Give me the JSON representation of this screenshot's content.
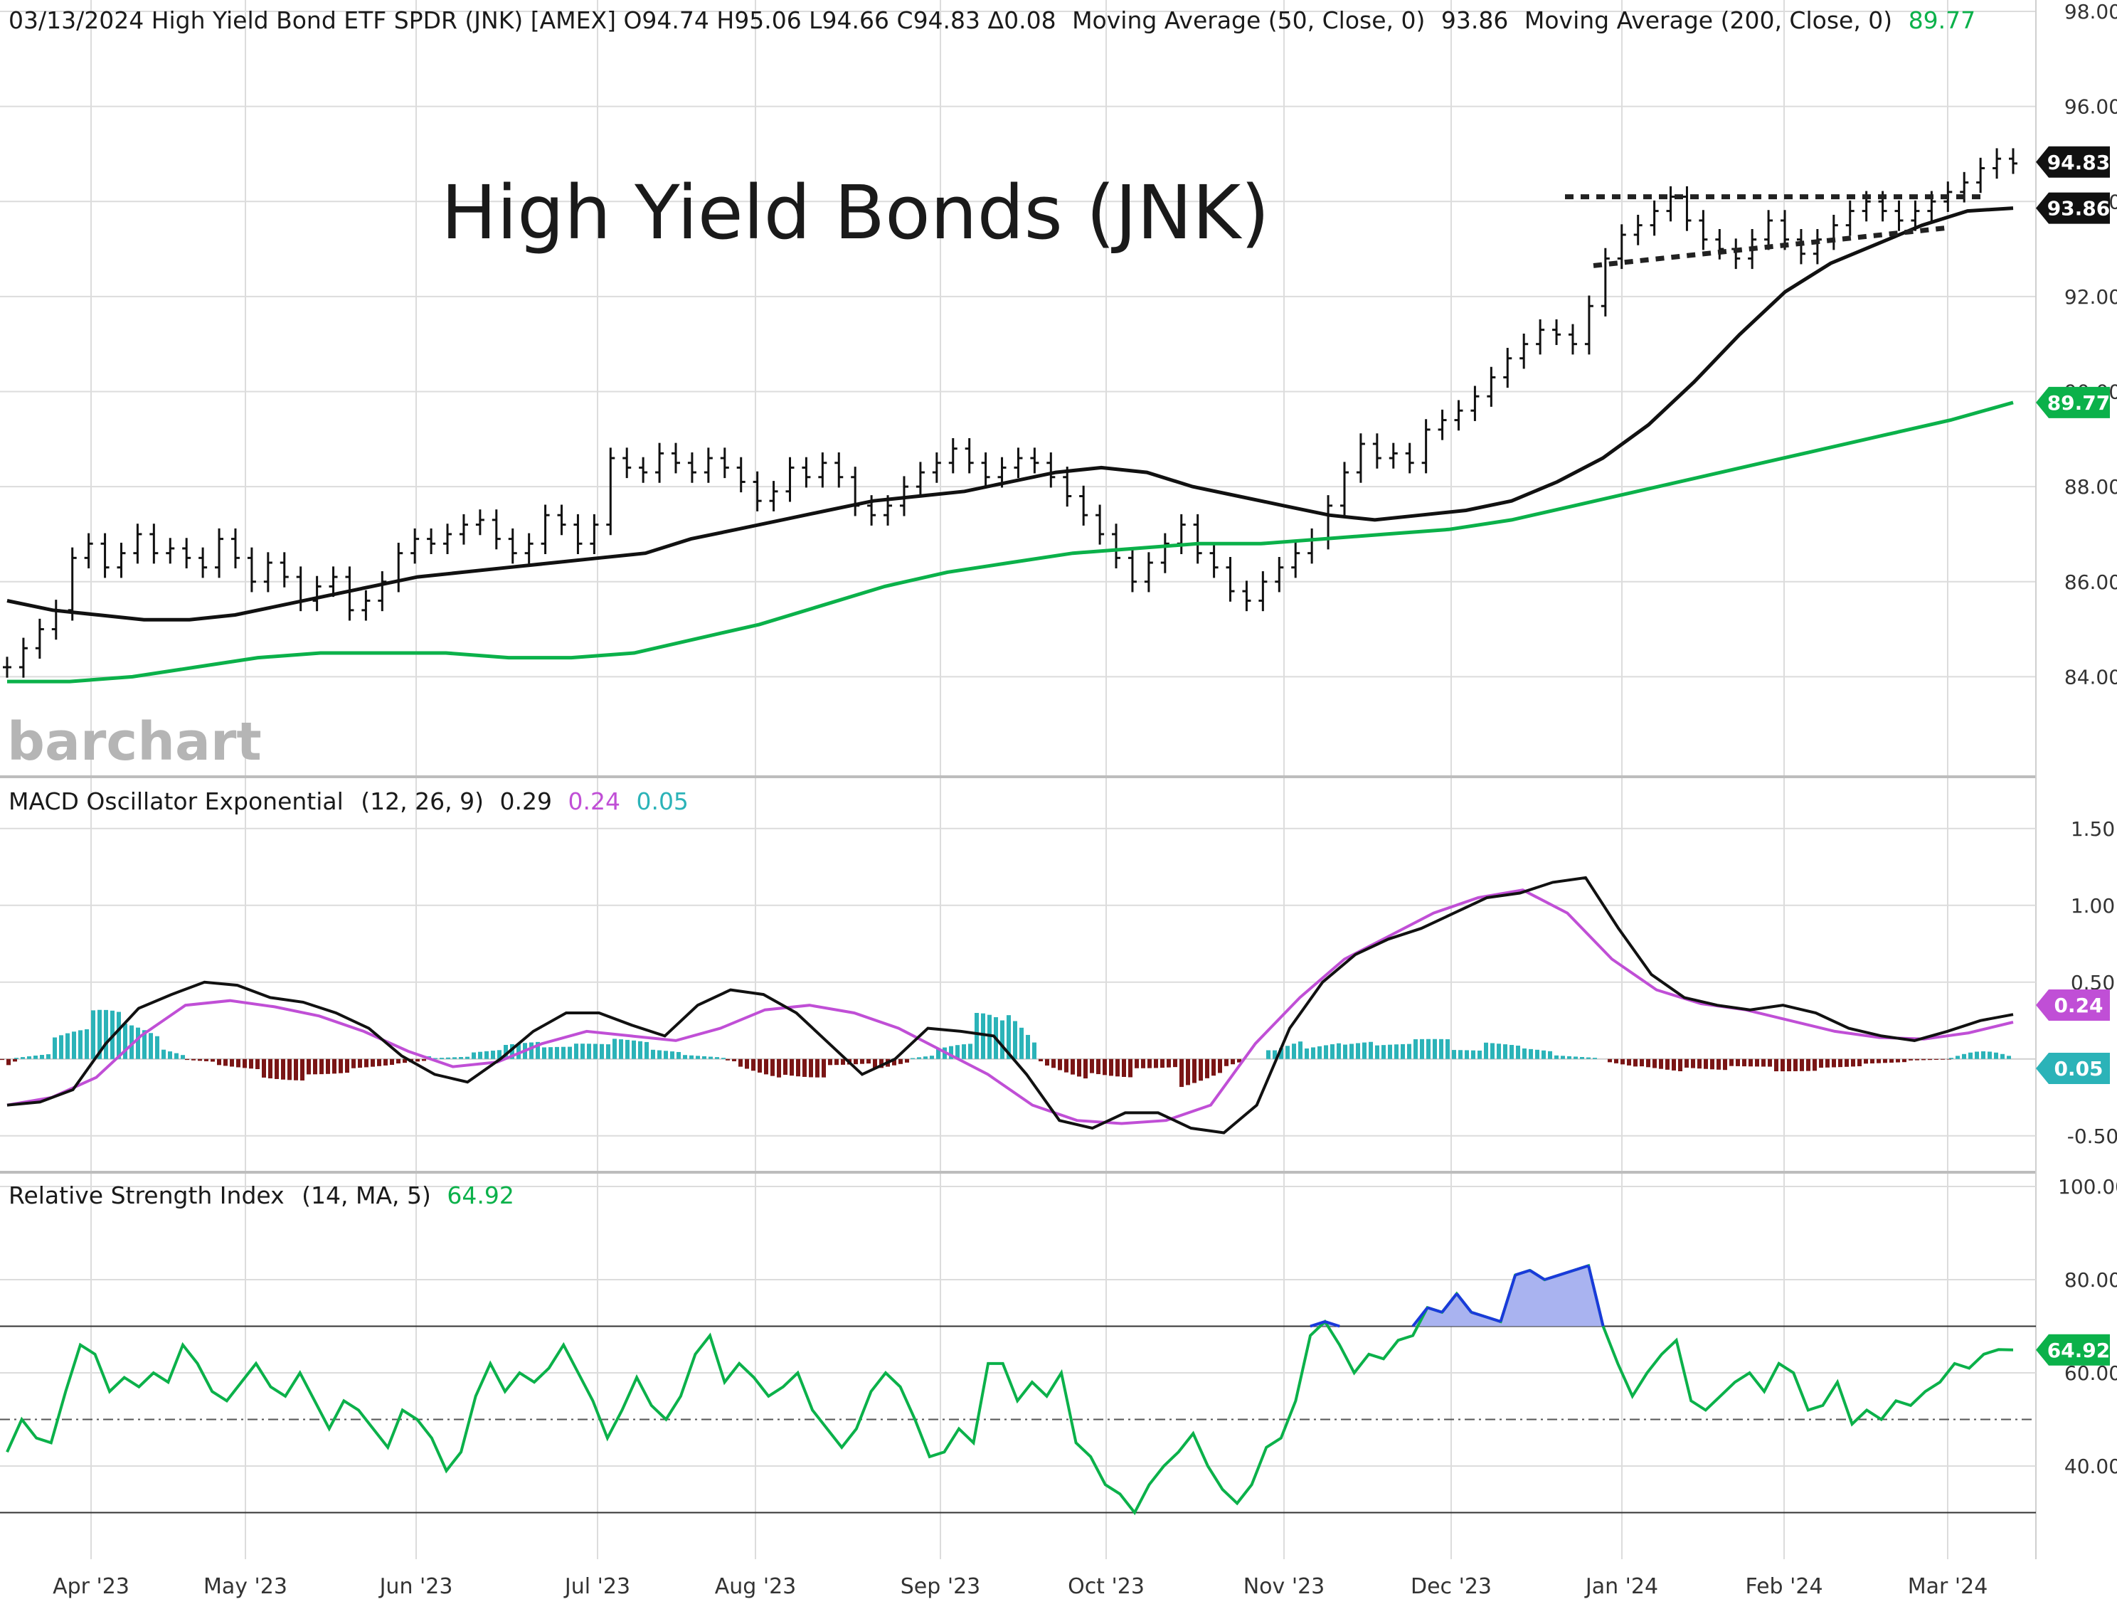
{
  "header": {
    "symbol_line": "03/13/2024 High Yield Bond ETF SPDR (JNK) [AMEX] O94.74 H95.06 L94.66 C94.83 Δ00.08",
    "symbol_line_fixed": "03/13/2024 High Yield Bond ETF SPDR (JNK) [AMEX] O94.74 H95.06 L94.66 C94.83 Δ0.08",
    "ma50_label": "Moving Average (50, Close, 0)",
    "ma50_value": "93.86",
    "ma200_label": "Moving Average (200, Close, 0)",
    "ma200_value": "89.77"
  },
  "annotation_title": "High Yield Bonds (JNK)",
  "logo_text": "barchart",
  "colors": {
    "ma200": "#0bb14a",
    "price": "#111111",
    "macd_signal": "#c04fd6",
    "hist_pos": "#2bb3b8",
    "hist_neg": "#7a1515",
    "rsi_line": "#0bb14a",
    "rsi_over": "#1a3adb",
    "rsi_fill": "#a9b3f0",
    "rsi_under": "#e0141e",
    "grid": "#dcdcdc"
  },
  "chart_data": [
    {
      "type": "line",
      "panel": "price",
      "ylim": [
        82.0,
        98.0
      ],
      "yticks": [
        "98.00",
        "96.00",
        "94.00",
        "92.00",
        "90.00",
        "88.00",
        "86.00",
        "84.00"
      ],
      "x_labels": [
        "Apr '23",
        "May '23",
        "Jun '23",
        "Jul '23",
        "Aug '23",
        "Sep '23",
        "Oct '23",
        "Nov '23",
        "Dec '23",
        "Jan '24",
        "Feb '24",
        "Mar '24"
      ],
      "price_close": [
        84.2,
        84.6,
        85.0,
        85.4,
        86.5,
        86.8,
        86.3,
        86.6,
        87.0,
        86.6,
        86.7,
        86.5,
        86.3,
        86.9,
        86.5,
        86.0,
        86.4,
        86.1,
        85.6,
        85.9,
        86.1,
        85.4,
        85.6,
        86.0,
        86.6,
        86.9,
        86.8,
        87.0,
        87.2,
        87.3,
        86.9,
        86.6,
        86.8,
        87.4,
        87.2,
        86.8,
        87.2,
        88.6,
        88.4,
        88.3,
        88.7,
        88.5,
        88.3,
        88.6,
        88.4,
        88.1,
        87.7,
        87.9,
        88.4,
        88.2,
        88.5,
        88.2,
        87.6,
        87.4,
        87.6,
        88.0,
        88.3,
        88.5,
        88.8,
        88.5,
        88.2,
        88.4,
        88.6,
        88.5,
        88.2,
        87.8,
        87.4,
        87.0,
        86.5,
        86.0,
        86.4,
        86.8,
        87.2,
        86.6,
        86.3,
        85.8,
        85.6,
        86.0,
        86.3,
        86.6,
        86.9,
        87.6,
        88.3,
        88.9,
        88.6,
        88.7,
        88.5,
        89.2,
        89.4,
        89.6,
        89.9,
        90.3,
        90.7,
        91.0,
        91.3,
        91.2,
        91.0,
        91.8,
        92.8,
        93.3,
        93.5,
        93.8,
        94.1,
        93.6,
        93.2,
        93.0,
        92.8,
        93.2,
        93.6,
        93.2,
        92.9,
        93.2,
        93.5,
        93.8,
        94.0,
        93.8,
        93.6,
        93.8,
        94.0,
        94.2,
        94.4,
        94.7,
        94.9,
        94.8
      ],
      "ma50": [
        85.6,
        85.4,
        85.3,
        85.2,
        85.2,
        85.3,
        85.5,
        85.7,
        85.9,
        86.1,
        86.2,
        86.3,
        86.4,
        86.5,
        86.6,
        86.9,
        87.1,
        87.3,
        87.5,
        87.7,
        87.8,
        87.9,
        88.1,
        88.3,
        88.4,
        88.3,
        88.0,
        87.8,
        87.6,
        87.4,
        87.3,
        87.4,
        87.5,
        87.7,
        88.1,
        88.6,
        89.3,
        90.2,
        91.2,
        92.1,
        92.7,
        93.1,
        93.5,
        93.8,
        93.86
      ],
      "ma200": [
        83.9,
        83.9,
        84.0,
        84.2,
        84.4,
        84.5,
        84.5,
        84.5,
        84.4,
        84.4,
        84.5,
        84.8,
        85.1,
        85.5,
        85.9,
        86.2,
        86.4,
        86.6,
        86.7,
        86.8,
        86.8,
        86.9,
        87.0,
        87.1,
        87.3,
        87.6,
        87.9,
        88.2,
        88.5,
        88.8,
        89.1,
        89.4,
        89.77
      ],
      "ref_lines": [
        {
          "name": "upper trend",
          "y_start": 94.1,
          "y_end": 94.1
        },
        {
          "name": "lower trend",
          "y_start": 92.65,
          "y_end": 93.45
        }
      ]
    },
    {
      "type": "bar",
      "panel": "macd",
      "title": "MACD Oscillator Exponential",
      "params": "(12, 26, 9)",
      "values_text": [
        "0.29",
        "0.24",
        "0.05"
      ],
      "ylim": [
        -0.7,
        1.8
      ],
      "yticks": [
        "1.50",
        "1.00",
        "0.50",
        "-0.50"
      ],
      "macd": [
        -0.3,
        -0.28,
        -0.2,
        0.1,
        0.33,
        0.42,
        0.5,
        0.48,
        0.4,
        0.37,
        0.3,
        0.2,
        0.02,
        -0.1,
        -0.15,
        0.0,
        0.18,
        0.3,
        0.3,
        0.22,
        0.15,
        0.35,
        0.45,
        0.42,
        0.3,
        0.1,
        -0.1,
        0.0,
        0.2,
        0.18,
        0.15,
        -0.1,
        -0.4,
        -0.45,
        -0.35,
        -0.35,
        -0.45,
        -0.48,
        -0.3,
        0.2,
        0.5,
        0.68,
        0.78,
        0.85,
        0.95,
        1.05,
        1.08,
        1.15,
        1.18,
        0.85,
        0.55,
        0.4,
        0.35,
        0.32,
        0.35,
        0.3,
        0.2,
        0.15,
        0.12,
        0.18,
        0.25,
        0.29
      ],
      "signal": [
        -0.3,
        -0.25,
        -0.12,
        0.15,
        0.35,
        0.38,
        0.34,
        0.28,
        0.18,
        0.05,
        -0.05,
        -0.02,
        0.1,
        0.18,
        0.15,
        0.12,
        0.2,
        0.32,
        0.35,
        0.3,
        0.2,
        0.05,
        -0.1,
        -0.3,
        -0.4,
        -0.42,
        -0.4,
        -0.3,
        0.1,
        0.4,
        0.65,
        0.8,
        0.95,
        1.05,
        1.1,
        0.95,
        0.65,
        0.45,
        0.36,
        0.32,
        0.25,
        0.18,
        0.14,
        0.13,
        0.17,
        0.24
      ],
      "hist_pos": [
        0.05,
        0.2,
        0.32,
        0.25,
        0.12,
        0.03,
        0.08,
        0.12,
        0.08,
        0.1,
        0.14,
        0.08,
        0.05,
        0.04,
        0.1,
        0.3,
        0.38,
        0.28,
        0.15,
        0.13,
        0.1,
        0.13,
        0.06,
        0.12,
        0.1,
        0.05,
        0.05,
        0.05
      ],
      "hist_neg": [
        -0.04,
        -0.08,
        -0.14,
        -0.1,
        -0.07,
        -0.06,
        -0.15,
        -0.12,
        -0.04,
        -0.1,
        -0.18,
        -0.12,
        -0.06,
        -0.22,
        -0.14,
        -0.12,
        -0.08,
        -0.05,
        -0.08,
        -0.06,
        -0.04,
        -0.02
      ]
    },
    {
      "type": "line",
      "panel": "rsi",
      "title": "Relative Strength Index",
      "params": "(14, MA, 5)",
      "value_text": "64.92",
      "ylim": [
        20,
        100
      ],
      "yticks": [
        "100.00",
        "80.00",
        "60.00",
        "40.00"
      ],
      "overbought": 70,
      "oversold": 30,
      "midline": 50,
      "rsi": [
        43,
        50,
        46,
        45,
        56,
        66,
        64,
        56,
        59,
        57,
        60,
        58,
        66,
        62,
        56,
        54,
        58,
        62,
        57,
        55,
        60,
        54,
        48,
        54,
        52,
        48,
        44,
        52,
        50,
        46,
        39,
        43,
        55,
        62,
        56,
        60,
        58,
        61,
        66,
        60,
        54,
        46,
        52,
        59,
        53,
        50,
        55,
        64,
        68,
        58,
        62,
        59,
        55,
        57,
        60,
        52,
        48,
        44,
        48,
        56,
        60,
        57,
        50,
        42,
        43,
        48,
        45,
        62,
        62,
        54,
        58,
        55,
        60,
        45,
        42,
        36,
        34,
        30,
        36,
        40,
        43,
        47,
        40,
        35,
        32,
        36,
        44,
        46,
        54,
        68,
        71,
        66,
        60,
        64,
        63,
        67,
        68,
        74,
        73,
        77,
        73,
        72,
        71,
        81,
        82,
        80,
        81,
        82,
        83,
        70,
        62,
        55,
        60,
        64,
        67,
        54,
        52,
        55,
        58,
        60,
        56,
        62,
        60,
        52,
        53,
        58,
        49,
        52,
        50,
        54,
        53,
        56,
        58,
        62,
        61,
        64,
        65,
        64.92
      ]
    }
  ],
  "value_tags": [
    {
      "label": "94.83",
      "kind": "price"
    },
    {
      "label": "93.86",
      "kind": "ma50"
    },
    {
      "label": "89.77",
      "kind": "ma200"
    },
    {
      "label": "0.24",
      "kind": "macd_signal"
    },
    {
      "label": "0.05",
      "kind": "hist"
    },
    {
      "label": "64.92",
      "kind": "rsi"
    }
  ]
}
